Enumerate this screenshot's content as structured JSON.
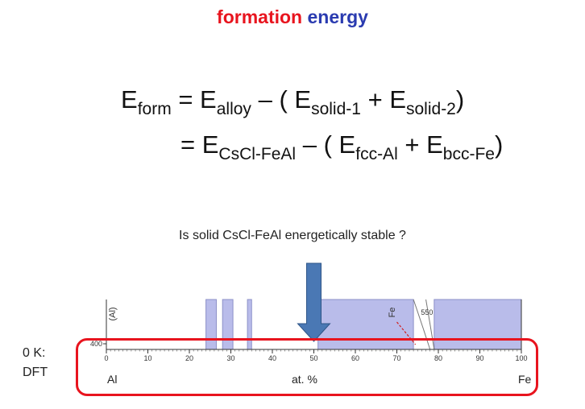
{
  "title": {
    "word1": "formation",
    "word2": "energy",
    "word1_color": "#e8141e",
    "word2_color": "#2a3bb0"
  },
  "equation": {
    "line1": {
      "lhs_base": "E",
      "lhs_sub": "form",
      "t1_base": "E",
      "t1_sub": "alloy",
      "t2_base": "E",
      "t2_sub": "solid-1",
      "t3_base": "E",
      "t3_sub": "solid-2"
    },
    "line2": {
      "t1_base": "E",
      "t1_sub": "CsCl-FeAl",
      "t2_base": "E",
      "t2_sub": "fcc-Al",
      "t3_base": "E",
      "t3_sub": "bcc-Fe"
    },
    "eq_sign": "=",
    "minus": "–",
    "open_paren": "(",
    "close_paren": ")",
    "plus": "+"
  },
  "question": "Is solid CsCl-FeAl energetically stable ?",
  "labels": {
    "line1": "0 K:",
    "line2": "DFT"
  },
  "chart_data": {
    "type": "area",
    "x_label": "at. %",
    "x_left_label": "Al",
    "x_right_label": "Fe",
    "x_ticks": [
      "0",
      "10",
      "20",
      "30",
      "40",
      "50",
      "60",
      "70",
      "80",
      "90",
      "100"
    ],
    "xlim": [
      0,
      100
    ],
    "y_label": "(Al)",
    "y_tick": "400",
    "annotation_temp": "550",
    "annotation_phase": "Fe",
    "arrow_at": 50,
    "shaded_regions": [
      [
        24,
        26.5
      ],
      [
        28,
        30.5
      ],
      [
        34,
        35
      ],
      [
        51,
        74
      ],
      [
        79,
        100
      ]
    ],
    "region_color": "#b9bcea",
    "arrow_color": "#4a78b4"
  },
  "box_color": "#e8141e"
}
